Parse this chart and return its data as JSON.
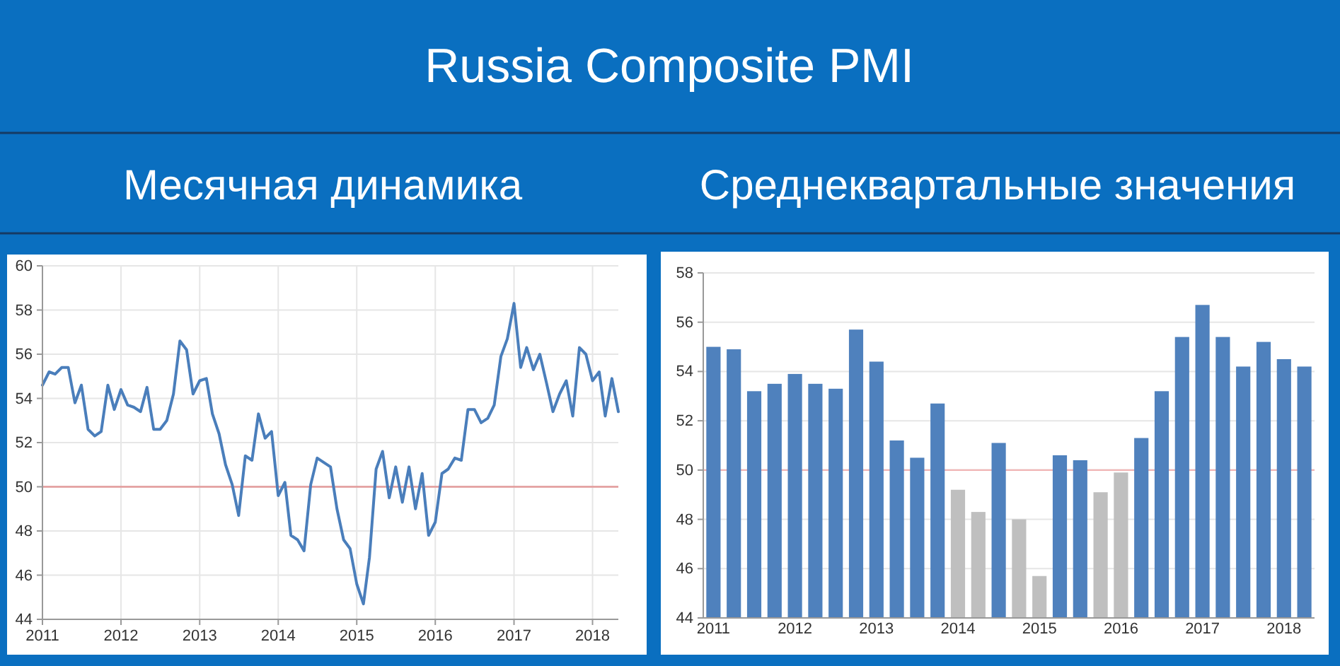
{
  "chart_data": [
    {
      "type": "line",
      "title": "Russia Composite PMI",
      "subtitle": "Месячная динамика",
      "x": [
        "2011-01",
        "2011-02",
        "2011-03",
        "2011-04",
        "2011-05",
        "2011-06",
        "2011-07",
        "2011-08",
        "2011-09",
        "2011-10",
        "2011-11",
        "2011-12",
        "2012-01",
        "2012-02",
        "2012-03",
        "2012-04",
        "2012-05",
        "2012-06",
        "2012-07",
        "2012-08",
        "2012-09",
        "2012-10",
        "2012-11",
        "2012-12",
        "2013-01",
        "2013-02",
        "2013-03",
        "2013-04",
        "2013-05",
        "2013-06",
        "2013-07",
        "2013-08",
        "2013-09",
        "2013-10",
        "2013-11",
        "2013-12",
        "2014-01",
        "2014-02",
        "2014-03",
        "2014-04",
        "2014-05",
        "2014-06",
        "2014-07",
        "2014-08",
        "2014-09",
        "2014-10",
        "2014-11",
        "2014-12",
        "2015-01",
        "2015-02",
        "2015-03",
        "2015-04",
        "2015-05",
        "2015-06",
        "2015-07",
        "2015-08",
        "2015-09",
        "2015-10",
        "2015-11",
        "2015-12",
        "2016-01",
        "2016-02",
        "2016-03",
        "2016-04",
        "2016-05",
        "2016-06",
        "2016-07",
        "2016-08",
        "2016-09",
        "2016-10",
        "2016-11",
        "2016-12",
        "2017-01",
        "2017-02",
        "2017-03",
        "2017-04",
        "2017-05",
        "2017-06",
        "2017-07",
        "2017-08",
        "2017-09",
        "2017-10",
        "2017-11",
        "2017-12",
        "2018-01",
        "2018-02",
        "2018-03",
        "2018-04",
        "2018-05"
      ],
      "values": [
        54.6,
        55.2,
        55.1,
        55.4,
        55.4,
        53.8,
        54.6,
        52.6,
        52.3,
        52.5,
        54.6,
        53.5,
        54.4,
        53.7,
        53.6,
        53.4,
        54.5,
        52.6,
        52.6,
        53.0,
        54.2,
        56.6,
        56.2,
        54.2,
        54.8,
        54.9,
        53.3,
        52.4,
        51.0,
        50.1,
        48.7,
        51.4,
        51.2,
        53.3,
        52.2,
        52.5,
        49.6,
        50.2,
        47.8,
        47.6,
        47.1,
        50.1,
        51.3,
        51.1,
        50.9,
        49.0,
        47.6,
        47.2,
        45.6,
        44.7,
        46.8,
        50.8,
        51.6,
        49.5,
        50.9,
        49.3,
        50.9,
        49.0,
        50.6,
        47.8,
        48.4,
        50.6,
        50.8,
        51.3,
        51.2,
        53.5,
        53.5,
        52.9,
        53.1,
        53.7,
        55.9,
        56.7,
        58.3,
        55.4,
        56.3,
        55.3,
        56.0,
        54.7,
        53.4,
        54.2,
        54.8,
        53.2,
        56.3,
        56.0,
        54.8,
        55.2,
        53.2,
        54.9,
        53.4
      ],
      "color": "#4a7ebb",
      "xlim": [
        "2011-01",
        "2018-05"
      ],
      "xticks": [
        "2011",
        "2012",
        "2013",
        "2014",
        "2015",
        "2016",
        "2017",
        "2018"
      ],
      "ylim": [
        44,
        60
      ],
      "yticks": [
        44,
        46,
        48,
        50,
        52,
        54,
        56,
        58,
        60
      ],
      "ref_lines": [
        {
          "axis": "y",
          "value": 50,
          "color": "#e39a9a"
        }
      ],
      "grid": true
    },
    {
      "type": "bar",
      "title": "Среднеквартальные значения",
      "categories": [
        "2011",
        null,
        null,
        null,
        "2012",
        null,
        null,
        null,
        "2013",
        null,
        null,
        null,
        "2014",
        null,
        null,
        null,
        "2015",
        null,
        null,
        null,
        "2016",
        null,
        null,
        null,
        "2017",
        null,
        null,
        null,
        "2018",
        null
      ],
      "values": [
        55.0,
        54.9,
        53.2,
        53.5,
        53.9,
        53.5,
        53.3,
        55.7,
        54.4,
        51.2,
        50.5,
        52.7,
        49.2,
        48.3,
        51.1,
        48.0,
        45.7,
        50.6,
        50.4,
        49.1,
        49.9,
        51.3,
        53.2,
        55.4,
        56.7,
        55.4,
        54.2,
        55.2,
        54.5,
        54.2
      ],
      "colors": [
        "#4f81bd",
        "#4f81bd",
        "#4f81bd",
        "#4f81bd",
        "#4f81bd",
        "#4f81bd",
        "#4f81bd",
        "#4f81bd",
        "#4f81bd",
        "#4f81bd",
        "#4f81bd",
        "#4f81bd",
        "#bfbfbf",
        "#bfbfbf",
        "#4f81bd",
        "#bfbfbf",
        "#bfbfbf",
        "#4f81bd",
        "#4f81bd",
        "#bfbfbf",
        "#bfbfbf",
        "#4f81bd",
        "#4f81bd",
        "#4f81bd",
        "#4f81bd",
        "#4f81bd",
        "#4f81bd",
        "#4f81bd",
        "#4f81bd",
        "#4f81bd"
      ],
      "ylim": [
        44,
        58
      ],
      "yticks": [
        44,
        46,
        48,
        50,
        52,
        54,
        56,
        58
      ],
      "ref_lines": [
        {
          "axis": "y",
          "value": 50,
          "color": "#f0b4b4"
        }
      ],
      "grid": "y"
    }
  ]
}
